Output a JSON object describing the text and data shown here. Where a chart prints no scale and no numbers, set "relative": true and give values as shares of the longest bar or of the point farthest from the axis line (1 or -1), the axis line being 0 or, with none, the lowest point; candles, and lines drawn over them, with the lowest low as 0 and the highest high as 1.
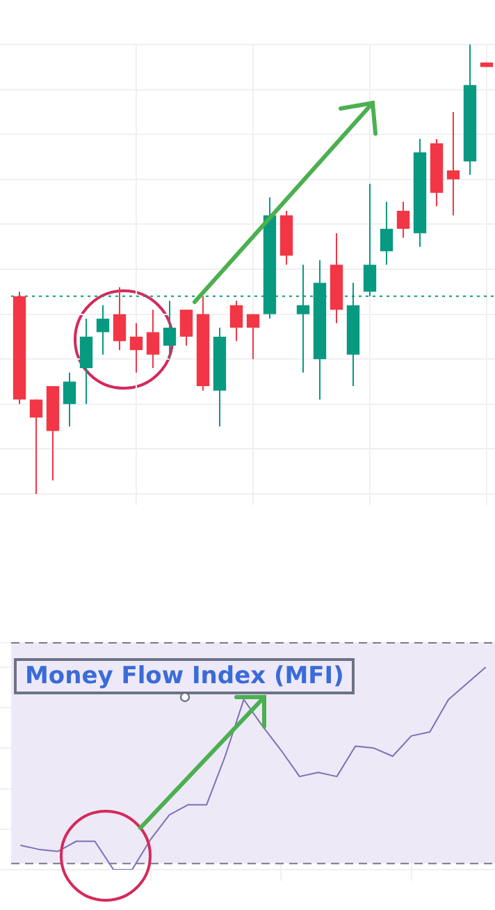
{
  "chart_data": [
    {
      "type": "candlestick",
      "relative": true,
      "grid": true,
      "categories": [
        null,
        null,
        null,
        null,
        null,
        null,
        null,
        null,
        null,
        null,
        null,
        null,
        null,
        null,
        null,
        null,
        null,
        null,
        null,
        null,
        null,
        null,
        null,
        null,
        null,
        null,
        null,
        null,
        null
      ],
      "ohlc": [
        [
          0.44,
          0.45,
          0.2,
          0.21
        ],
        [
          0.21,
          0.21,
          0,
          0.17
        ],
        [
          0.24,
          0.24,
          0.03,
          0.14
        ],
        [
          0.2,
          0.27,
          0.15,
          0.25
        ],
        [
          0.28,
          0.39,
          0.2,
          0.35
        ],
        [
          0.36,
          0.42,
          0.31,
          0.39
        ],
        [
          0.4,
          0.46,
          0.32,
          0.34
        ],
        [
          0.35,
          0.38,
          0.27,
          0.32
        ],
        [
          0.36,
          0.41,
          0.28,
          0.31
        ],
        [
          0.33,
          0.43,
          0.3,
          0.37
        ],
        [
          0.41,
          0.41,
          0.33,
          0.35
        ],
        [
          0.4,
          0.44,
          0.23,
          0.24
        ],
        [
          0.23,
          0.37,
          0.15,
          0.35
        ],
        [
          0.42,
          0.43,
          0.34,
          0.37
        ],
        [
          0.4,
          0.4,
          0.3,
          0.37
        ],
        [
          0.4,
          0.66,
          0.39,
          0.62
        ],
        [
          0.62,
          0.63,
          0.51,
          0.53
        ],
        [
          0.4,
          0.51,
          0.27,
          0.42
        ],
        [
          0.3,
          0.52,
          0.21,
          0.47
        ],
        [
          0.51,
          0.58,
          0.38,
          0.41
        ],
        [
          0.31,
          0.47,
          0.24,
          0.42
        ],
        [
          0.45,
          0.69,
          0.44,
          0.51
        ],
        [
          0.54,
          0.65,
          0.51,
          0.59
        ],
        [
          0.63,
          0.65,
          0.57,
          0.59
        ],
        [
          0.58,
          0.79,
          0.55,
          0.76
        ],
        [
          0.78,
          0.79,
          0.64,
          0.67
        ],
        [
          0.72,
          0.85,
          0.62,
          0.7
        ],
        [
          0.74,
          1,
          0.71,
          0.91
        ],
        [
          0.96,
          0.96,
          0.95,
          0.95
        ]
      ],
      "colors": [
        "#f23645",
        "#f23645",
        "#f23645",
        "#089981",
        "#089981",
        "#089981",
        "#f23645",
        "#f23645",
        "#f23645",
        "#089981",
        "#f23645",
        "#f23645",
        "#089981",
        "#f23645",
        "#f23645",
        "#089981",
        "#f23645",
        "#089981",
        "#089981",
        "#f23645",
        "#089981",
        "#089981",
        "#089981",
        "#f23645",
        "#089981",
        "#f23645",
        "#f23645",
        "#089981",
        "#f23645"
      ],
      "ref_lines": [
        {
          "axis": "y",
          "value": 0.44,
          "color": "#089981",
          "line_style": "dotted"
        }
      ]
    },
    {
      "type": "line",
      "title": "Money Flow Index (MFI)",
      "relative": true,
      "grid": true,
      "marker": "none",
      "categories": [
        null,
        null,
        null,
        null,
        null,
        null,
        null,
        null,
        null,
        null,
        null,
        null,
        null,
        null,
        null,
        null,
        null,
        null,
        null,
        null,
        null,
        null,
        null,
        null,
        null,
        null
      ],
      "series": [
        {
          "color": "#7e6fb5",
          "values": [
            0.12,
            0.1,
            0.09,
            0.14,
            0.14,
            0,
            0,
            0.15,
            0.27,
            0.32,
            0.32,
            0.56,
            0.84,
            0.71,
            0.59,
            0.46,
            0.48,
            0.46,
            0.61,
            0.6,
            0.56,
            0.66,
            0.68,
            0.84,
            0.92,
            1
          ]
        }
      ],
      "bands": [
        {
          "axis": "y",
          "from": 0.03,
          "to": 1.12,
          "color": "#ede9f7"
        }
      ],
      "ref_lines": [
        {
          "axis": "y",
          "value": 1.12,
          "color": "#787b86",
          "line_style": "dashed"
        },
        {
          "axis": "y",
          "value": 0.03,
          "color": "#787b86",
          "line_style": "dashed"
        }
      ]
    }
  ]
}
